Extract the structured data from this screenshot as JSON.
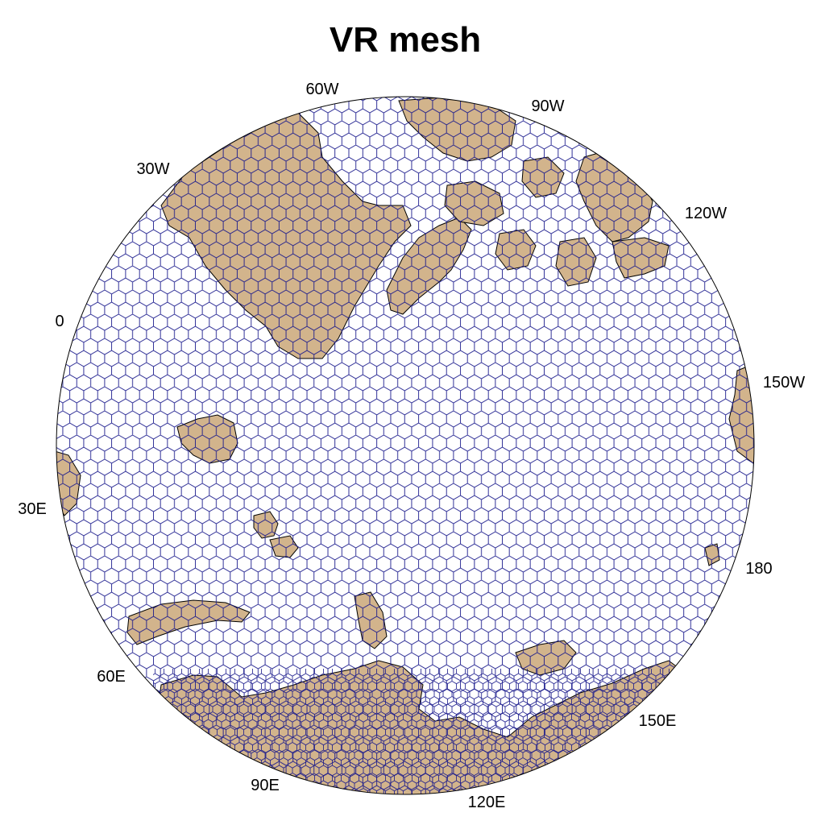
{
  "title": "VR mesh",
  "colors": {
    "land": "#d2b48c",
    "ocean": "#ffffff",
    "mesh": "#1a1a8c",
    "coast": "#000000"
  },
  "longitude_labels": [
    "60W",
    "90W",
    "30W",
    "120W",
    "0",
    "150W",
    "30E",
    "180",
    "60E",
    "150E",
    "90E",
    "120E"
  ]
}
